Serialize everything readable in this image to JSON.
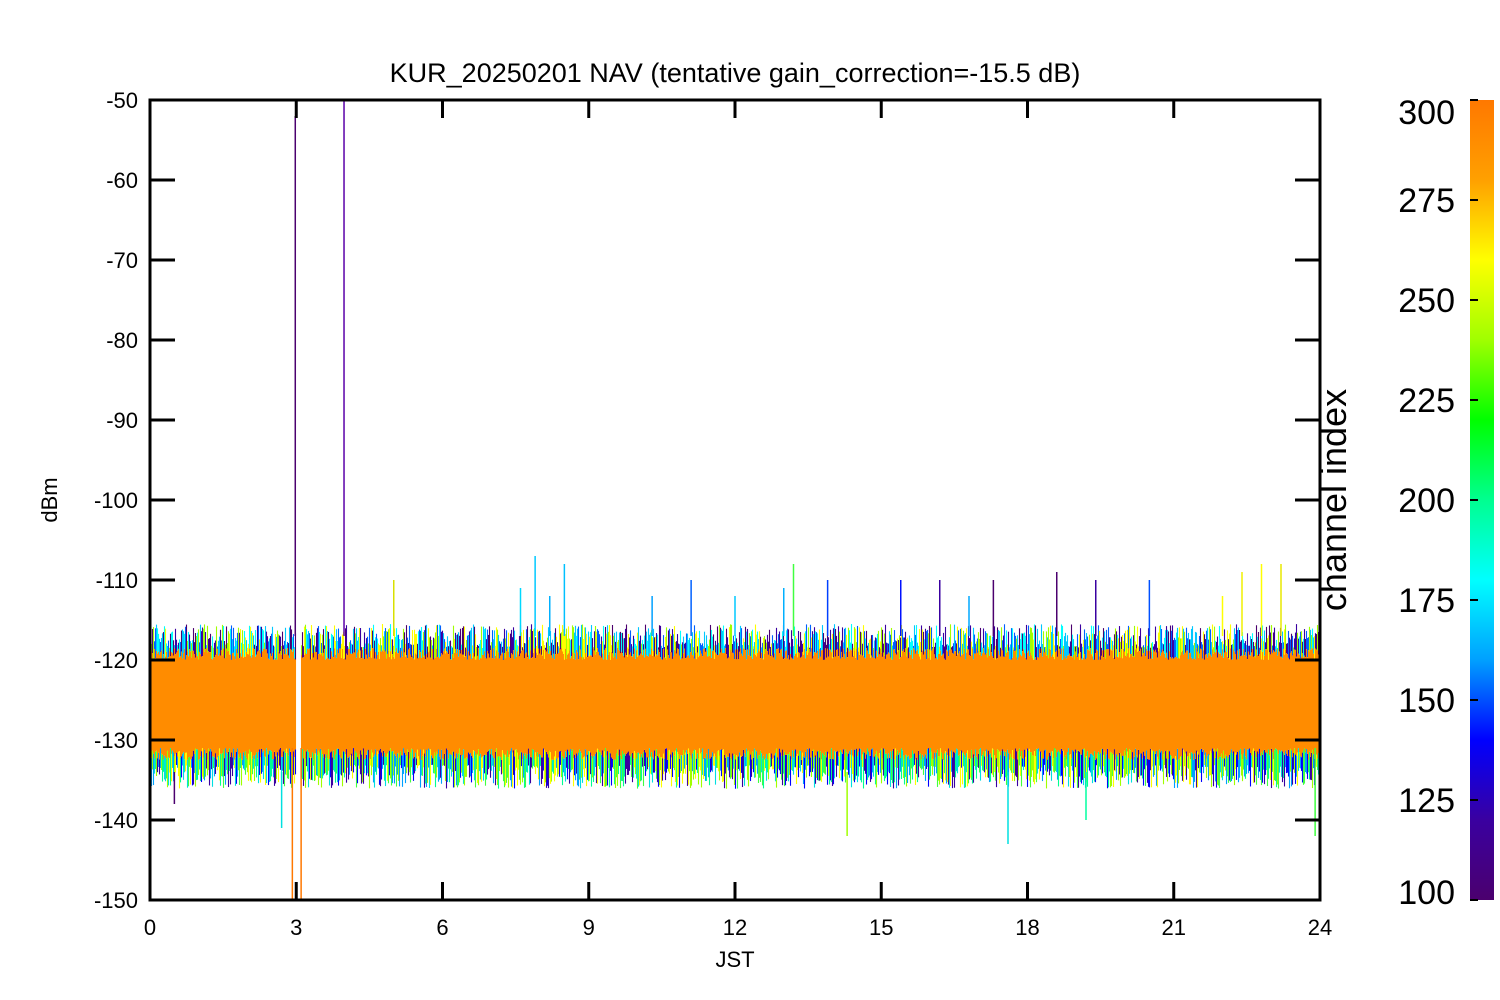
{
  "chart_data": {
    "type": "line",
    "title": "KUR_20250201 NAV (tentative gain_correction=-15.5 dB)",
    "xlabel": "JST",
    "ylabel": "dBm",
    "xlim": [
      0,
      24
    ],
    "ylim": [
      -150,
      -50
    ],
    "xticks": [
      "0",
      "3",
      "6",
      "9",
      "12",
      "15",
      "18",
      "21",
      "24"
    ],
    "xtick_values": [
      0,
      3,
      6,
      9,
      12,
      15,
      18,
      21,
      24
    ],
    "yticks": [
      "-50",
      "-60",
      "-70",
      "-80",
      "-90",
      "-100",
      "-110",
      "-120",
      "-130",
      "-140",
      "-150"
    ],
    "ytick_values": [
      -50,
      -60,
      -70,
      -80,
      -90,
      -100,
      -110,
      -120,
      -130,
      -140,
      -150
    ],
    "grid": false,
    "colorbar": {
      "label": "channel index",
      "range": [
        100,
        300
      ],
      "ticks": [
        "300",
        "275",
        "250",
        "225",
        "200",
        "175",
        "150",
        "125",
        "100"
      ],
      "tick_values": [
        300,
        275,
        250,
        225,
        200,
        175,
        150,
        125,
        100
      ],
      "colormap": [
        "#4b006e",
        "#3a00a0",
        "#0000ff",
        "#00a0ff",
        "#00ffff",
        "#00ff90",
        "#00ff00",
        "#a0ff00",
        "#ffff00",
        "#ffa000",
        "#ff7800"
      ]
    },
    "band": {
      "dominant_channel": 300,
      "dominant_color": "#ff8c00",
      "core_range_dbm": [
        -131,
        -120
      ],
      "typical_upper_dbm": -117,
      "typical_lower_dbm": -134,
      "data_gap_jst": [
        3.0,
        3.1
      ]
    },
    "spikes": [
      {
        "x": 2.98,
        "y_from": -117,
        "y_to": -52,
        "channel": 105,
        "color": "#4b006e"
      },
      {
        "x": 3.98,
        "y_from": -117,
        "y_to": -50,
        "channel": 110,
        "color": "#5a00a8"
      },
      {
        "x": 2.92,
        "y_from": -131,
        "y_to": -150,
        "channel": 300,
        "color": "#ff7800"
      },
      {
        "x": 3.1,
        "y_from": -131,
        "y_to": -150,
        "channel": 300,
        "color": "#ff7800"
      },
      {
        "x": 5.0,
        "y_from": -117,
        "y_to": -110,
        "channel": 265,
        "color": "#d8e000"
      },
      {
        "x": 7.6,
        "y_from": -117,
        "y_to": -111,
        "channel": 180,
        "color": "#00d8ff"
      },
      {
        "x": 7.9,
        "y_from": -117,
        "y_to": -107,
        "channel": 175,
        "color": "#00c8ff"
      },
      {
        "x": 8.2,
        "y_from": -117,
        "y_to": -112,
        "channel": 170,
        "color": "#00b0ff"
      },
      {
        "x": 8.5,
        "y_from": -117,
        "y_to": -108,
        "channel": 172,
        "color": "#00c0ff"
      },
      {
        "x": 10.3,
        "y_from": -117,
        "y_to": -112,
        "channel": 160,
        "color": "#00a0ff"
      },
      {
        "x": 11.1,
        "y_from": -117,
        "y_to": -110,
        "channel": 150,
        "color": "#0060ff"
      },
      {
        "x": 12.0,
        "y_from": -117,
        "y_to": -112,
        "channel": 175,
        "color": "#00c8ff"
      },
      {
        "x": 13.0,
        "y_from": -117,
        "y_to": -111,
        "channel": 170,
        "color": "#00b0ff"
      },
      {
        "x": 13.2,
        "y_from": -117,
        "y_to": -108,
        "channel": 230,
        "color": "#40ff40"
      },
      {
        "x": 13.9,
        "y_from": -117,
        "y_to": -110,
        "channel": 145,
        "color": "#0040ff"
      },
      {
        "x": 15.4,
        "y_from": -117,
        "y_to": -110,
        "channel": 140,
        "color": "#0010ff"
      },
      {
        "x": 16.2,
        "y_from": -117,
        "y_to": -110,
        "channel": 120,
        "color": "#3a00a0"
      },
      {
        "x": 16.8,
        "y_from": -117,
        "y_to": -112,
        "channel": 165,
        "color": "#00a8ff"
      },
      {
        "x": 17.3,
        "y_from": -117,
        "y_to": -110,
        "channel": 110,
        "color": "#4b006e"
      },
      {
        "x": 18.6,
        "y_from": -117,
        "y_to": -109,
        "channel": 115,
        "color": "#4b006e"
      },
      {
        "x": 19.4,
        "y_from": -117,
        "y_to": -110,
        "channel": 120,
        "color": "#3a00a0"
      },
      {
        "x": 20.5,
        "y_from": -117,
        "y_to": -110,
        "channel": 150,
        "color": "#0050ff"
      },
      {
        "x": 22.0,
        "y_from": -117,
        "y_to": -112,
        "channel": 270,
        "color": "#ffff00"
      },
      {
        "x": 22.4,
        "y_from": -117,
        "y_to": -109,
        "channel": 270,
        "color": "#f0f000"
      },
      {
        "x": 22.8,
        "y_from": -117,
        "y_to": -108,
        "channel": 270,
        "color": "#ffff00"
      },
      {
        "x": 23.2,
        "y_from": -117,
        "y_to": -108,
        "channel": 275,
        "color": "#e8e800"
      },
      {
        "x": 14.3,
        "y_from": -134,
        "y_to": -142,
        "channel": 255,
        "color": "#a0ff00"
      },
      {
        "x": 17.6,
        "y_from": -134,
        "y_to": -143,
        "channel": 190,
        "color": "#00e0e0"
      },
      {
        "x": 19.2,
        "y_from": -134,
        "y_to": -140,
        "channel": 210,
        "color": "#00ffa0"
      },
      {
        "x": 23.9,
        "y_from": -131,
        "y_to": -142,
        "channel": 240,
        "color": "#40ff40"
      },
      {
        "x": 0.5,
        "y_from": -134,
        "y_to": -138,
        "channel": 115,
        "color": "#4b006e"
      },
      {
        "x": 2.7,
        "y_from": -134,
        "y_to": -141,
        "channel": 190,
        "color": "#00e0e0"
      }
    ]
  }
}
